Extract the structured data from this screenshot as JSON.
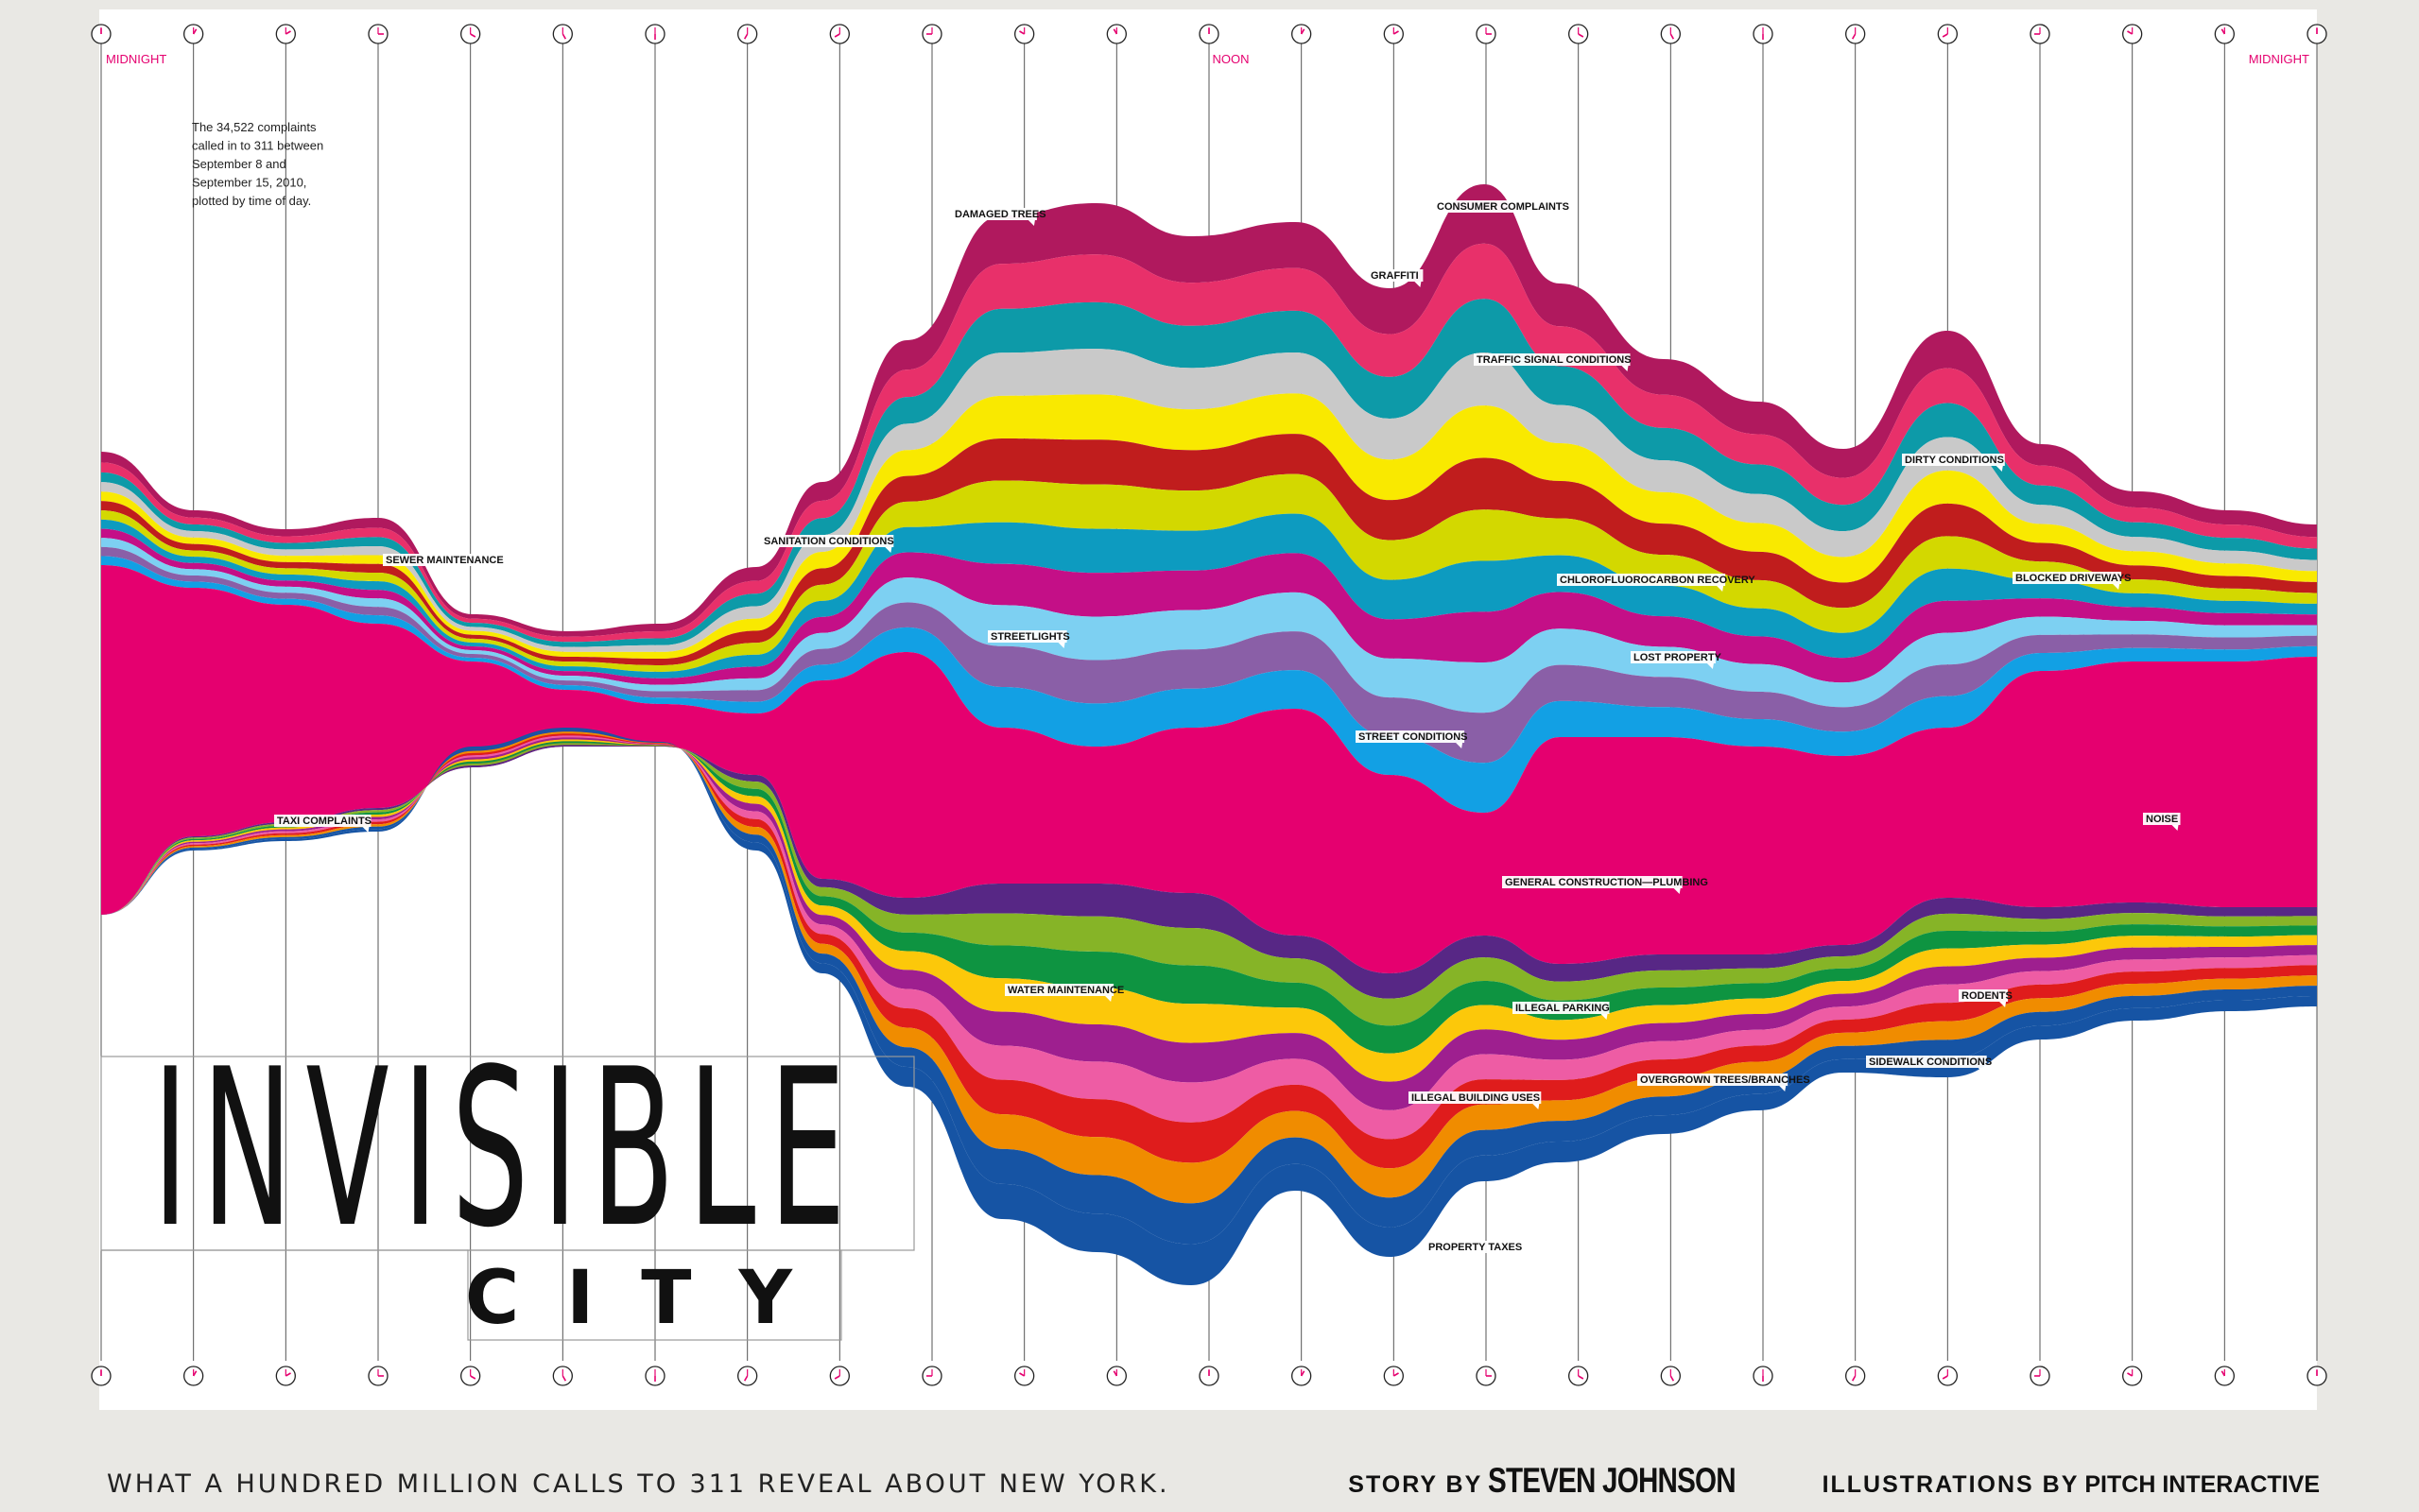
{
  "chart_data": {
    "type": "area",
    "description_text": "The 34,522 complaints called in to 311 between September 8 and September 15, 2010, plotted by time of day.",
    "description_lines": [
      "The 34,522 complaints",
      "called in to 311 between",
      "September 8 and",
      "September 15, 2010,",
      "plotted by time of day."
    ],
    "time_labels": {
      "left": "MIDNIGHT",
      "center": "NOON",
      "right": "MIDNIGHT"
    },
    "hours": [
      0,
      1,
      2,
      3,
      4,
      5,
      6,
      7,
      8,
      9,
      10,
      11,
      12,
      13,
      14,
      15,
      16,
      17,
      18,
      19,
      20,
      21,
      22,
      23,
      24
    ],
    "series": [
      {
        "name": "DAMAGED TREES",
        "color": "#b0195e"
      },
      {
        "name": "",
        "color": "#e8306a"
      },
      {
        "name": "CONSUMER COMPLAINTS",
        "color": "#0d9aa8"
      },
      {
        "name": "GRAFFITI",
        "color": "#c9c9c9"
      },
      {
        "name": "TRAFFIC SIGNAL CONDITIONS",
        "color": "#f9e900"
      },
      {
        "name": "DIRTY CONDITIONS",
        "color": "#c01d1d"
      },
      {
        "name": "SEWER MAINTENANCE",
        "color": "#d3d800"
      },
      {
        "name": "SANITATION CONDITIONS",
        "color": "#0d9bc0"
      },
      {
        "name": "BLOCKED DRIVEWAYS",
        "color": "#c40f87"
      },
      {
        "name": "CHLOROFLUOROCARBON RECOVERY",
        "color": "#7dd0f2"
      },
      {
        "name": "STREETLIGHTS",
        "color": "#8a5fa7"
      },
      {
        "name": "LOST PROPERTY",
        "color": "#12a0e4"
      },
      {
        "name": "NOISE",
        "color": "#e5006f"
      },
      {
        "name": "STREET CONDITIONS",
        "color": "#572785"
      },
      {
        "name": "GENERAL CONSTRUCTION—PLUMBING",
        "color": "#86b427"
      },
      {
        "name": "WATER MAINTENANCE",
        "color": "#0e9441"
      },
      {
        "name": "ILLEGAL PARKING",
        "color": "#fcc80a"
      },
      {
        "name": "RODENTS",
        "color": "#9e1f8f"
      },
      {
        "name": "TAXI COMPLAINTS",
        "color": "#ee5ca4"
      },
      {
        "name": "ILLEGAL BUILDING USES",
        "color": "#df1c1c"
      },
      {
        "name": "SIDEWALK CONDITIONS",
        "color": "#f08c00"
      },
      {
        "name": "OVERGROWN TREES/BRANCHES",
        "color": "#1654a4"
      },
      {
        "name": "PROPERTY TAXES",
        "color": "#1654a4"
      }
    ],
    "annotations": [
      "DAMAGED TREES",
      "CONSUMER COMPLAINTS",
      "GRAFFITI",
      "TRAFFIC SIGNAL CONDITIONS",
      "DIRTY CONDITIONS",
      "SEWER MAINTENANCE",
      "SANITATION CONDITIONS",
      "BLOCKED DRIVEWAYS",
      "CHLOROFLUOROCARBON RECOVERY",
      "STREETLIGHTS",
      "LOST PROPERTY",
      "STREET CONDITIONS",
      "NOISE",
      "TAXI COMPLAINTS",
      "GENERAL CONSTRUCTION—PLUMBING",
      "WATER MAINTENANCE",
      "ILLEGAL PARKING",
      "RODENTS",
      "SIDEWALK CONDITIONS",
      "ILLEGAL BUILDING USES",
      "OVERGROWN TREES/BRANCHES",
      "PROPERTY TAXES"
    ]
  },
  "title": {
    "main": "INVISIBLE",
    "sub": "CITY"
  },
  "subtitle": "WHAT A HUNDRED MILLION CALLS TO 311 REVEAL ABOUT NEW YORK.",
  "credits": {
    "story_label": "STORY BY",
    "story_name": "STEVEN JOHNSON",
    "illus_label": "ILLUSTRATIONS BY",
    "illus_name": "PITCH INTERACTIVE"
  },
  "colors": {
    "accent": "#e5006f",
    "background": "#ffffff",
    "frame": "#e9e8e4"
  }
}
